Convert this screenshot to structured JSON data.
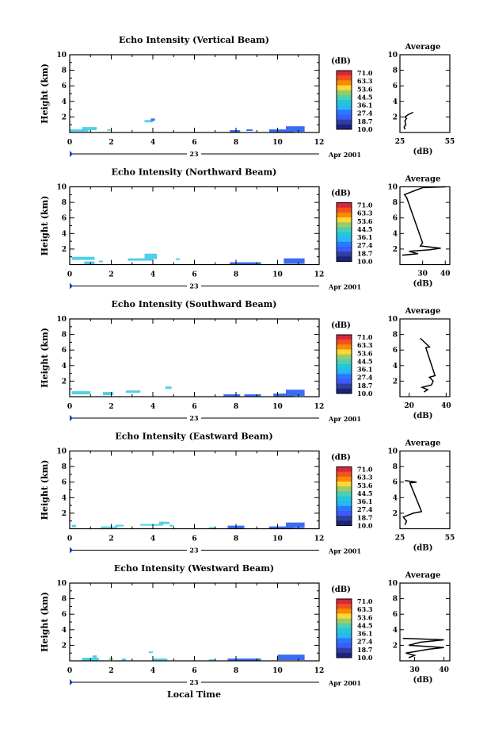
{
  "figure": {
    "xlabel": "Local Time",
    "date_day": "23",
    "date_suffix": "Apr 2001",
    "colorbar_unit": "(dB)",
    "colorbar_ticks": [
      "71.0",
      "63.3",
      "53.6",
      "44.5",
      "36.1",
      "27.4",
      "18.7",
      "10.0"
    ],
    "colorbar_colors": [
      "#d7263d",
      "#f4511e",
      "#fb8c00",
      "#fdd835",
      "#9ccc65",
      "#4dd0b5",
      "#26c6da",
      "#29b6f6",
      "#2979ff",
      "#3d5afe",
      "#303f9f",
      "#1a237e"
    ],
    "average_title": "Average",
    "average_xlabel": "(dB)",
    "height_label": "Height (km)",
    "echo_color_main": "#3a6df0",
    "echo_color_light": "#4fd0e8",
    "echo_color_green": "#7ee0a0"
  },
  "chart_data": [
    {
      "type": "heatmap",
      "title": "Echo Intensity (Vertical Beam)",
      "ylabel": "Height (km)",
      "xlim": [
        0,
        12
      ],
      "ylim": [
        0,
        10
      ],
      "xticks": [
        "0",
        "2",
        "4",
        "6",
        "8",
        "10",
        "12"
      ],
      "yticks": [
        "2",
        "4",
        "6",
        "8",
        "10"
      ],
      "cells": [
        [
          0.0,
          0.9,
          0.1,
          0.4,
          "l"
        ],
        [
          0.6,
          1.3,
          0.3,
          0.7,
          "l"
        ],
        [
          1.8,
          2.0,
          0.2,
          0.4,
          "g"
        ],
        [
          3.6,
          4.0,
          1.3,
          1.6,
          "l"
        ],
        [
          3.9,
          4.1,
          1.5,
          1.8,
          "m"
        ],
        [
          7.7,
          8.2,
          0.0,
          0.3,
          "m"
        ],
        [
          8.5,
          8.8,
          0.2,
          0.4,
          "m"
        ],
        [
          9.6,
          10.8,
          0.0,
          0.4,
          "m"
        ],
        [
          10.4,
          11.3,
          0.1,
          0.8,
          "m"
        ]
      ],
      "average": {
        "xlim": [
          25,
          55
        ],
        "xticks": [
          "25",
          "55"
        ],
        "ylim": [
          0,
          10
        ],
        "yticks": [
          "2",
          "4",
          "6",
          "8",
          "10"
        ],
        "profile": [
          [
            28,
            0.4
          ],
          [
            27.5,
            0.7
          ],
          [
            28.5,
            1.0
          ],
          [
            28,
            1.5
          ],
          [
            29,
            1.8
          ],
          [
            28,
            2.0
          ],
          [
            30,
            2.3
          ],
          [
            32,
            2.5
          ],
          [
            33,
            2.6
          ]
        ]
      }
    },
    {
      "type": "heatmap",
      "title": "Echo Intensity (Northward Beam)",
      "ylabel": "Height (km)",
      "xlim": [
        0,
        12
      ],
      "ylim": [
        0,
        10
      ],
      "xticks": [
        "0",
        "2",
        "4",
        "6",
        "8",
        "10",
        "12"
      ],
      "yticks": [
        "2",
        "4",
        "6",
        "8",
        "10"
      ],
      "cells": [
        [
          0.1,
          1.2,
          0.6,
          1.0,
          "l"
        ],
        [
          0.7,
          1.2,
          0.0,
          0.4,
          "l"
        ],
        [
          1.4,
          1.6,
          0.3,
          0.5,
          "l"
        ],
        [
          2.8,
          4.0,
          0.5,
          0.8,
          "l"
        ],
        [
          3.6,
          4.2,
          0.7,
          1.4,
          "l"
        ],
        [
          5.1,
          5.3,
          0.6,
          0.8,
          "l"
        ],
        [
          7.7,
          9.2,
          0.0,
          0.3,
          "m"
        ],
        [
          10.3,
          11.3,
          0.1,
          0.8,
          "m"
        ]
      ],
      "average": {
        "xlim": [
          20,
          42
        ],
        "xticks": [
          "30",
          "40"
        ],
        "ylim": [
          0,
          10
        ],
        "yticks": [
          "2",
          "4",
          "6",
          "8",
          "10"
        ],
        "profile": [
          [
            21,
            1.2
          ],
          [
            28,
            1.4
          ],
          [
            24,
            1.7
          ],
          [
            33,
            1.9
          ],
          [
            38,
            2.1
          ],
          [
            29,
            2.4
          ],
          [
            30,
            2.8
          ],
          [
            23,
            8.6
          ],
          [
            22,
            9.0
          ],
          [
            30,
            9.9
          ],
          [
            40,
            10
          ]
        ]
      }
    },
    {
      "type": "heatmap",
      "title": "Echo Intensity (Southward Beam)",
      "ylabel": "Height (km)",
      "xlim": [
        0,
        12
      ],
      "ylim": [
        0,
        10
      ],
      "xticks": [
        "0",
        "2",
        "4",
        "6",
        "8",
        "10",
        "12"
      ],
      "yticks": [
        "2",
        "4",
        "6",
        "8",
        "10"
      ],
      "cells": [
        [
          0.1,
          1.0,
          0.3,
          0.7,
          "l"
        ],
        [
          1.6,
          2.1,
          0.2,
          0.6,
          "l"
        ],
        [
          2.7,
          3.4,
          0.5,
          0.8,
          "l"
        ],
        [
          4.6,
          4.9,
          1.0,
          1.3,
          "l"
        ],
        [
          7.4,
          8.2,
          0.0,
          0.3,
          "m"
        ],
        [
          8.4,
          9.2,
          0.0,
          0.3,
          "m"
        ],
        [
          9.8,
          10.8,
          0.0,
          0.4,
          "m"
        ],
        [
          10.4,
          11.3,
          0.1,
          0.9,
          "m"
        ]
      ],
      "average": {
        "xlim": [
          15,
          42
        ],
        "xticks": [
          "20",
          "40"
        ],
        "ylim": [
          0,
          10
        ],
        "yticks": [
          "2",
          "4",
          "6",
          "8",
          "10"
        ],
        "profile": [
          [
            28,
            0.6
          ],
          [
            30,
            0.9
          ],
          [
            27,
            1.2
          ],
          [
            32,
            1.5
          ],
          [
            33,
            2.0
          ],
          [
            31,
            2.5
          ],
          [
            34,
            2.7
          ],
          [
            29,
            6.3
          ],
          [
            31,
            6.4
          ],
          [
            27,
            7.3
          ],
          [
            26,
            7.5
          ]
        ]
      }
    },
    {
      "type": "heatmap",
      "title": "Echo Intensity (Eastward Beam)",
      "ylabel": "Height (km)",
      "xlim": [
        0,
        12
      ],
      "ylim": [
        0,
        10
      ],
      "xticks": [
        "0",
        "2",
        "4",
        "6",
        "8",
        "10",
        "12"
      ],
      "yticks": [
        "2",
        "4",
        "6",
        "8",
        "10"
      ],
      "cells": [
        [
          0.1,
          0.3,
          0.2,
          0.5,
          "l"
        ],
        [
          1.5,
          2.3,
          0.1,
          0.3,
          "l"
        ],
        [
          2.2,
          2.6,
          0.3,
          0.5,
          "l"
        ],
        [
          3.4,
          4.5,
          0.4,
          0.6,
          "l"
        ],
        [
          4.3,
          4.8,
          0.6,
          0.9,
          "l"
        ],
        [
          4.8,
          5.0,
          0.3,
          0.5,
          "l"
        ],
        [
          6.7,
          7.0,
          0.0,
          0.2,
          "l"
        ],
        [
          7.6,
          8.4,
          0.0,
          0.4,
          "m"
        ],
        [
          9.6,
          10.8,
          0.0,
          0.3,
          "m"
        ],
        [
          10.4,
          11.3,
          0.1,
          0.8,
          "m"
        ]
      ],
      "average": {
        "xlim": [
          25,
          55
        ],
        "xticks": [
          "25",
          "55"
        ],
        "ylim": [
          0,
          10
        ],
        "yticks": [
          "2",
          "4",
          "6",
          "8",
          "10"
        ],
        "profile": [
          [
            28,
            0.5
          ],
          [
            29,
            1.0
          ],
          [
            27,
            1.5
          ],
          [
            33,
            2.0
          ],
          [
            38,
            2.2
          ],
          [
            31,
            5.9
          ],
          [
            35,
            6.0
          ],
          [
            28,
            6.2
          ]
        ]
      }
    },
    {
      "type": "heatmap",
      "title": "Echo Intensity (Westward Beam)",
      "ylabel": "Height (km)",
      "xlim": [
        0,
        12
      ],
      "ylim": [
        0,
        10
      ],
      "xticks": [
        "0",
        "2",
        "4",
        "6",
        "8",
        "10",
        "12"
      ],
      "yticks": [
        "2",
        "4",
        "6",
        "8",
        "10"
      ],
      "cells": [
        [
          0.6,
          1.4,
          0.0,
          0.4,
          "l"
        ],
        [
          1.1,
          1.3,
          0.3,
          0.7,
          "l"
        ],
        [
          1.9,
          2.1,
          0.1,
          0.4,
          "g"
        ],
        [
          2.5,
          2.7,
          0.0,
          0.3,
          "l"
        ],
        [
          3.8,
          4.0,
          1.0,
          1.2,
          "l"
        ],
        [
          4.0,
          4.7,
          0.0,
          0.3,
          "l"
        ],
        [
          6.7,
          7.0,
          0.0,
          0.2,
          "l"
        ],
        [
          7.6,
          9.2,
          0.0,
          0.3,
          "m"
        ],
        [
          10.0,
          11.3,
          0.1,
          0.8,
          "m"
        ]
      ],
      "average": {
        "xlim": [
          25,
          42
        ],
        "xticks": [
          "30",
          "40"
        ],
        "ylim": [
          0,
          10
        ],
        "yticks": [
          "2",
          "4",
          "6",
          "8",
          "10"
        ],
        "profile": [
          [
            28,
            0.4
          ],
          [
            30,
            0.7
          ],
          [
            27,
            1.0
          ],
          [
            35,
            1.5
          ],
          [
            40,
            1.7
          ],
          [
            28,
            2.0
          ],
          [
            32,
            2.4
          ],
          [
            40,
            2.7
          ],
          [
            26,
            2.9
          ]
        ]
      }
    }
  ]
}
